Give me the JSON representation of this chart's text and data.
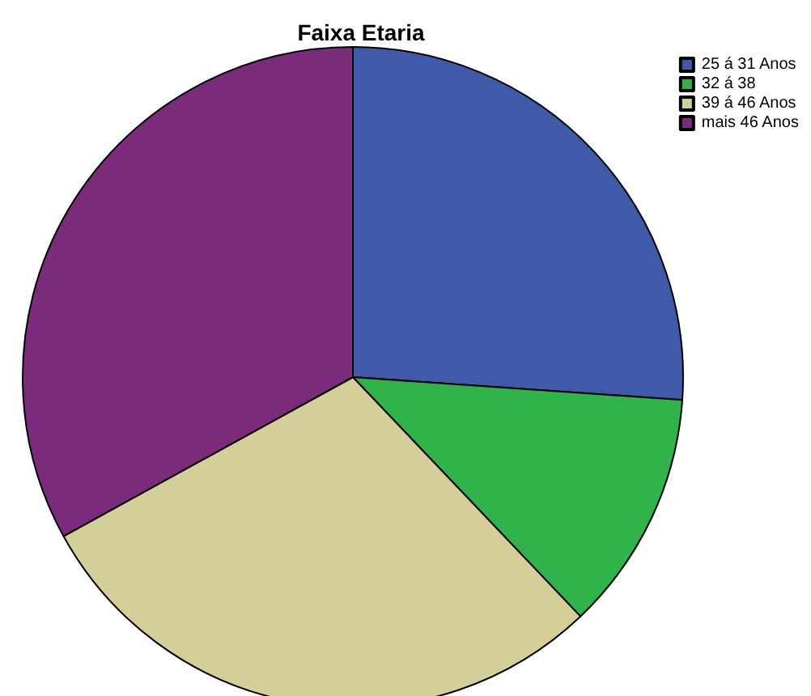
{
  "chart_data": {
    "type": "pie",
    "title": "Faixa Etaria",
    "categories": [
      "25 á 31 Anos",
      "32 á 38",
      "39 á 46 Anos",
      "mais 46 Anos"
    ],
    "values": [
      26.1,
      11.8,
      29.1,
      33.0
    ],
    "colors": [
      "#3e5aa9",
      "#2fb34a",
      "#d4cf98",
      "#7b2a7c"
    ],
    "legend": "top right"
  }
}
